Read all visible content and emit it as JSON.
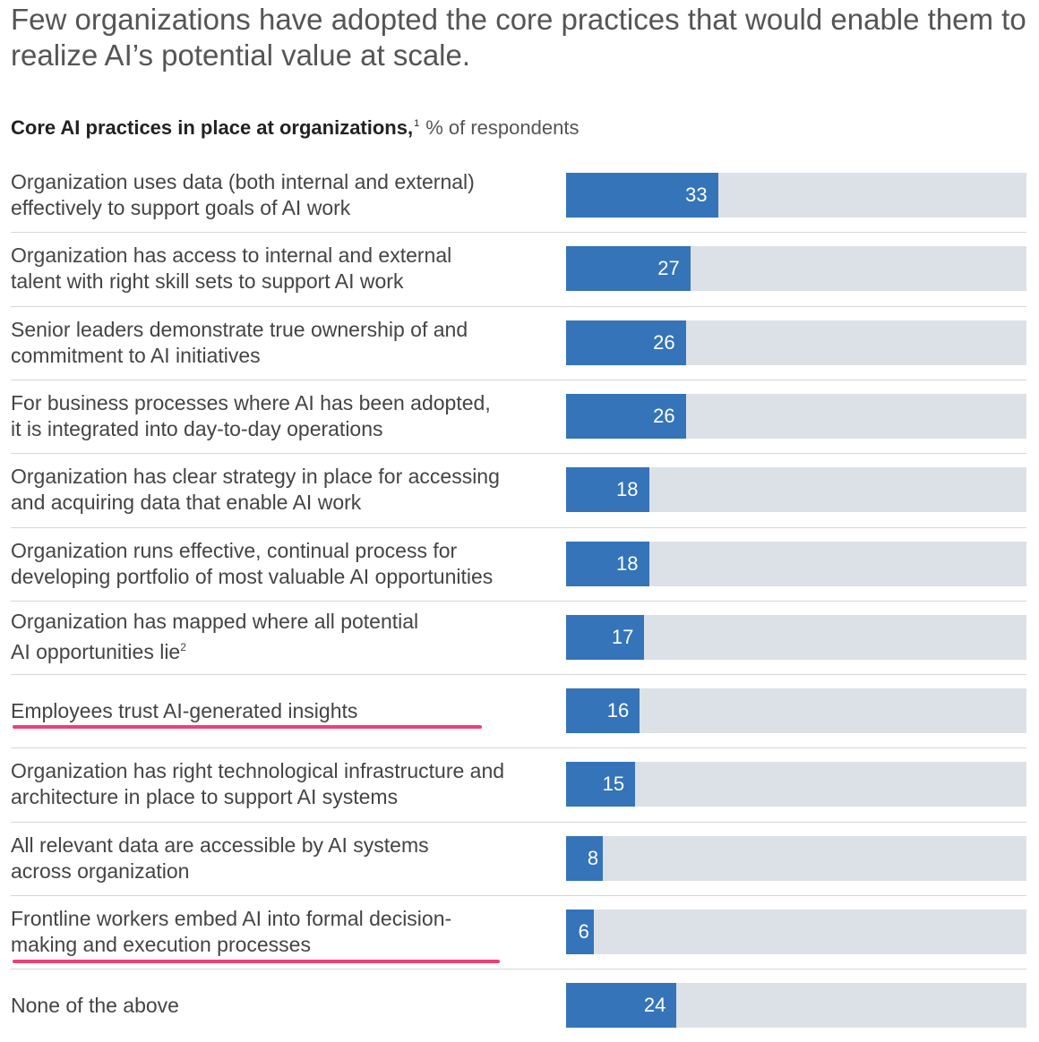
{
  "headline": "Few organizations have adopted the core practices that would enable them to realize AI’s potential value at scale.",
  "chart_data": {
    "type": "bar",
    "orientation": "horizontal",
    "title": "Core AI practices in place at organizations,",
    "title_footnote": "1",
    "unit_label": "% of respondents",
    "xlim": [
      0,
      100
    ],
    "categories": [
      "Organization uses data (both internal and external)\neffectively to support goals of AI work",
      "Organization has access to internal and external\ntalent with right skill sets to support AI work",
      "Senior leaders demonstrate true ownership of and\ncommitment to AI initiatives",
      "For business processes where AI has been adopted,\nit is integrated into day-to-day operations",
      "Organization has clear strategy in place for accessing\nand acquiring data that enable AI work",
      "Organization runs effective, continual process for\ndeveloping portfolio of most valuable AI opportunities",
      "Organization has mapped where all potential\nAI opportunities lie",
      "Employees trust AI-generated insights",
      "Organization has right technological infrastructure and\narchitecture in place to support AI systems",
      "All relevant data are accessible by AI systems\nacross organization",
      "Frontline workers embed AI into formal decision-\nmaking and execution processes",
      "None of the above"
    ],
    "category_footnotes": [
      "",
      "",
      "",
      "",
      "",
      "",
      "2",
      "",
      "",
      "",
      "",
      ""
    ],
    "values": [
      33,
      27,
      26,
      26,
      18,
      18,
      17,
      16,
      15,
      8,
      6,
      24
    ],
    "highlighted_categories": [
      7,
      10
    ],
    "colors": {
      "bar": "#3574b8",
      "track": "#dce1e7",
      "highlight": "#ef3f76",
      "value_text": "#ffffff"
    }
  }
}
